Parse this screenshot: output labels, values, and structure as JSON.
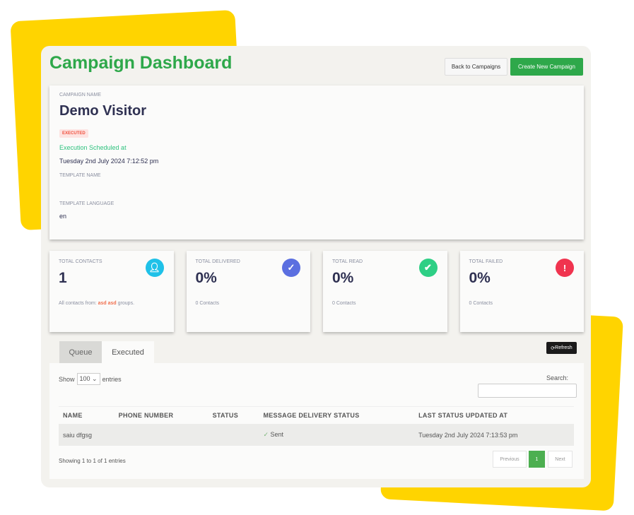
{
  "header": {
    "title": "Campaign Dashboard",
    "back_label": "Back to Campaigns",
    "create_label": "Create New Campaign"
  },
  "campaign": {
    "name_label": "CAMPAIGN NAME",
    "name": "Demo Visitor",
    "status": "EXECUTED",
    "scheduled_label": "Execution Scheduled at",
    "scheduled_at": "Tuesday 2nd July 2024 7:12:52 pm",
    "template_name_label": "TEMPLATE NAME",
    "template_name": "",
    "template_language_label": "TEMPLATE LANGUAGE",
    "template_language": "en"
  },
  "stats": [
    {
      "label": "TOTAL CONTACTS",
      "value": "1",
      "sub_prefix": "All contacts from: ",
      "sub_highlight": "asd asd",
      "sub_suffix": " groups.",
      "icon": "user-icon",
      "color": "#1fc1e8"
    },
    {
      "label": "TOTAL DELIVERED",
      "value": "0%",
      "sub": "0 Contacts",
      "icon": "check-icon",
      "color": "#5b6fe0"
    },
    {
      "label": "TOTAL READ",
      "value": "0%",
      "sub": "0 Contacts",
      "icon": "double-check-icon",
      "color": "#2ecf85"
    },
    {
      "label": "TOTAL FAILED",
      "value": "0%",
      "sub": "0 Contacts",
      "icon": "alert-icon",
      "color": "#f0344f"
    }
  ],
  "tabs": [
    {
      "label": "Queue"
    },
    {
      "label": "Executed"
    }
  ],
  "refresh_label": "Refresh",
  "table": {
    "show_label": "Show",
    "entries_value": "100",
    "entries_label": "entries",
    "search_label": "Search:",
    "search_value": "",
    "columns": [
      "NAME",
      "PHONE NUMBER",
      "STATUS",
      "MESSAGE DELIVERY STATUS",
      "LAST STATUS UPDATED AT"
    ],
    "rows": [
      [
        "saiu dfgsg",
        "",
        "",
        "Sent",
        "Tuesday 2nd July 2024 7:13:53 pm"
      ]
    ],
    "info": "Showing 1 to 1 of 1 entries",
    "prev": "Previous",
    "page": "1",
    "next": "Next"
  }
}
